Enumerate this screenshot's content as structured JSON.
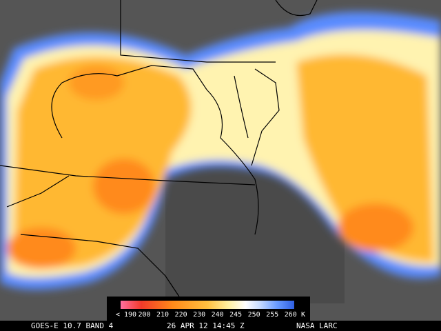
{
  "colorbar": {
    "labels": [
      "< 190",
      "200",
      "210",
      "220",
      "230",
      "240",
      "245",
      "250",
      "255",
      "260"
    ],
    "unit": "K"
  },
  "footer": {
    "satellite": "GOES-E 10.7 BAND 4",
    "time": "26 APR 12 14:45 Z",
    "source": "NASA LARC"
  }
}
